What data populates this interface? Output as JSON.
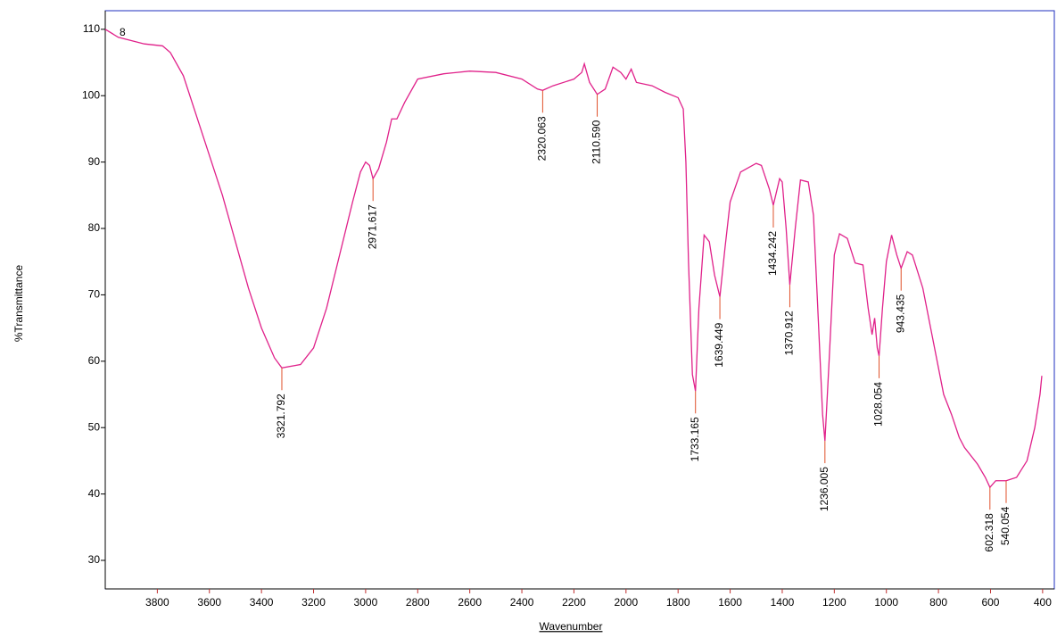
{
  "chart_data": {
    "type": "line",
    "x_label": "Wavenumber",
    "y_label": "%Transmittance",
    "xlim": [
      4000,
      355
    ],
    "ylim": [
      25.7,
      112.8
    ],
    "xticks": [
      3800,
      3600,
      3400,
      3200,
      3000,
      2800,
      2600,
      2400,
      2200,
      2000,
      1800,
      1600,
      1400,
      1200,
      1000,
      800,
      600,
      400
    ],
    "yticks": [
      30,
      40,
      50,
      60,
      70,
      80,
      90,
      100,
      110
    ],
    "x": [
      4000,
      3950,
      3850,
      3780,
      3750,
      3700,
      3650,
      3600,
      3550,
      3500,
      3450,
      3400,
      3350,
      3321.792,
      3250,
      3200,
      3150,
      3100,
      3050,
      3020,
      3000,
      2985,
      2971.617,
      2950,
      2920,
      2900,
      2880,
      2850,
      2800,
      2700,
      2600,
      2500,
      2400,
      2340,
      2320.063,
      2280,
      2200,
      2170,
      2160,
      2140,
      2110.59,
      2080,
      2050,
      2020,
      2000,
      1980,
      1960,
      1900,
      1850,
      1800,
      1780,
      1770,
      1760,
      1745,
      1733.165,
      1720,
      1700,
      1680,
      1660,
      1639.449,
      1620,
      1600,
      1560,
      1500,
      1480,
      1450,
      1434.242,
      1410,
      1400,
      1385,
      1370.912,
      1350,
      1330,
      1300,
      1280,
      1260,
      1245,
      1236.005,
      1220,
      1200,
      1180,
      1150,
      1120,
      1090,
      1070,
      1055,
      1045,
      1035,
      1028.054,
      1015,
      1000,
      980,
      960,
      943.435,
      920,
      900,
      860,
      820,
      780,
      750,
      720,
      700,
      650,
      620,
      602.318,
      580,
      540.054,
      500,
      460,
      430,
      410,
      403
    ],
    "series": [
      {
        "name": "8",
        "color": "#e0218a",
        "values": [
          110,
          108.8,
          107.8,
          107.5,
          106.5,
          103,
          97,
          91,
          85,
          78,
          71,
          65,
          60.5,
          59,
          59.5,
          62,
          68,
          76,
          84,
          88.5,
          90,
          89.5,
          87.5,
          89,
          93,
          96.5,
          96.5,
          99,
          102.5,
          103.3,
          103.7,
          103.5,
          102.5,
          101,
          100.8,
          101.5,
          102.5,
          103.5,
          104.8,
          102,
          100.2,
          101,
          104.3,
          103.5,
          102.5,
          104,
          102,
          101.5,
          100.5,
          99.7,
          98,
          90,
          75,
          58,
          55.5,
          68,
          79,
          78,
          73,
          69.7,
          77,
          84,
          88.5,
          89.8,
          89.5,
          86,
          83.5,
          87.5,
          87,
          80,
          71.5,
          80,
          87.3,
          87,
          82,
          65,
          52,
          48,
          60,
          76,
          79.2,
          78.5,
          74.8,
          74.5,
          68,
          64,
          66.5,
          62,
          60.8,
          68,
          75,
          79,
          76,
          74,
          76.5,
          76,
          71,
          63,
          55,
          52,
          48.5,
          47,
          44.5,
          42.5,
          41,
          42,
          42,
          42.5,
          45,
          50,
          55,
          57.8
        ]
      }
    ],
    "peaks": [
      {
        "label": "3321.792",
        "x": 3321.792,
        "y": 59
      },
      {
        "label": "2971.617",
        "x": 2971.617,
        "y": 87.5
      },
      {
        "label": "2320.063",
        "x": 2320.063,
        "y": 100.8
      },
      {
        "label": "2110.590",
        "x": 2110.59,
        "y": 100.2
      },
      {
        "label": "1733.165",
        "x": 1733.165,
        "y": 55.5
      },
      {
        "label": "1639.449",
        "x": 1639.449,
        "y": 69.7
      },
      {
        "label": "1434.242",
        "x": 1434.242,
        "y": 83.5
      },
      {
        "label": "1370.912",
        "x": 1370.912,
        "y": 71.5
      },
      {
        "label": "1236.005",
        "x": 1236.005,
        "y": 48
      },
      {
        "label": "1028.054",
        "x": 1028.054,
        "y": 60.8
      },
      {
        "label": "943.435",
        "x": 943.435,
        "y": 74
      },
      {
        "label": "602.318",
        "x": 602.318,
        "y": 41
      },
      {
        "label": "540.054",
        "x": 540.054,
        "y": 42
      }
    ],
    "peak_color": "#e0502a"
  }
}
